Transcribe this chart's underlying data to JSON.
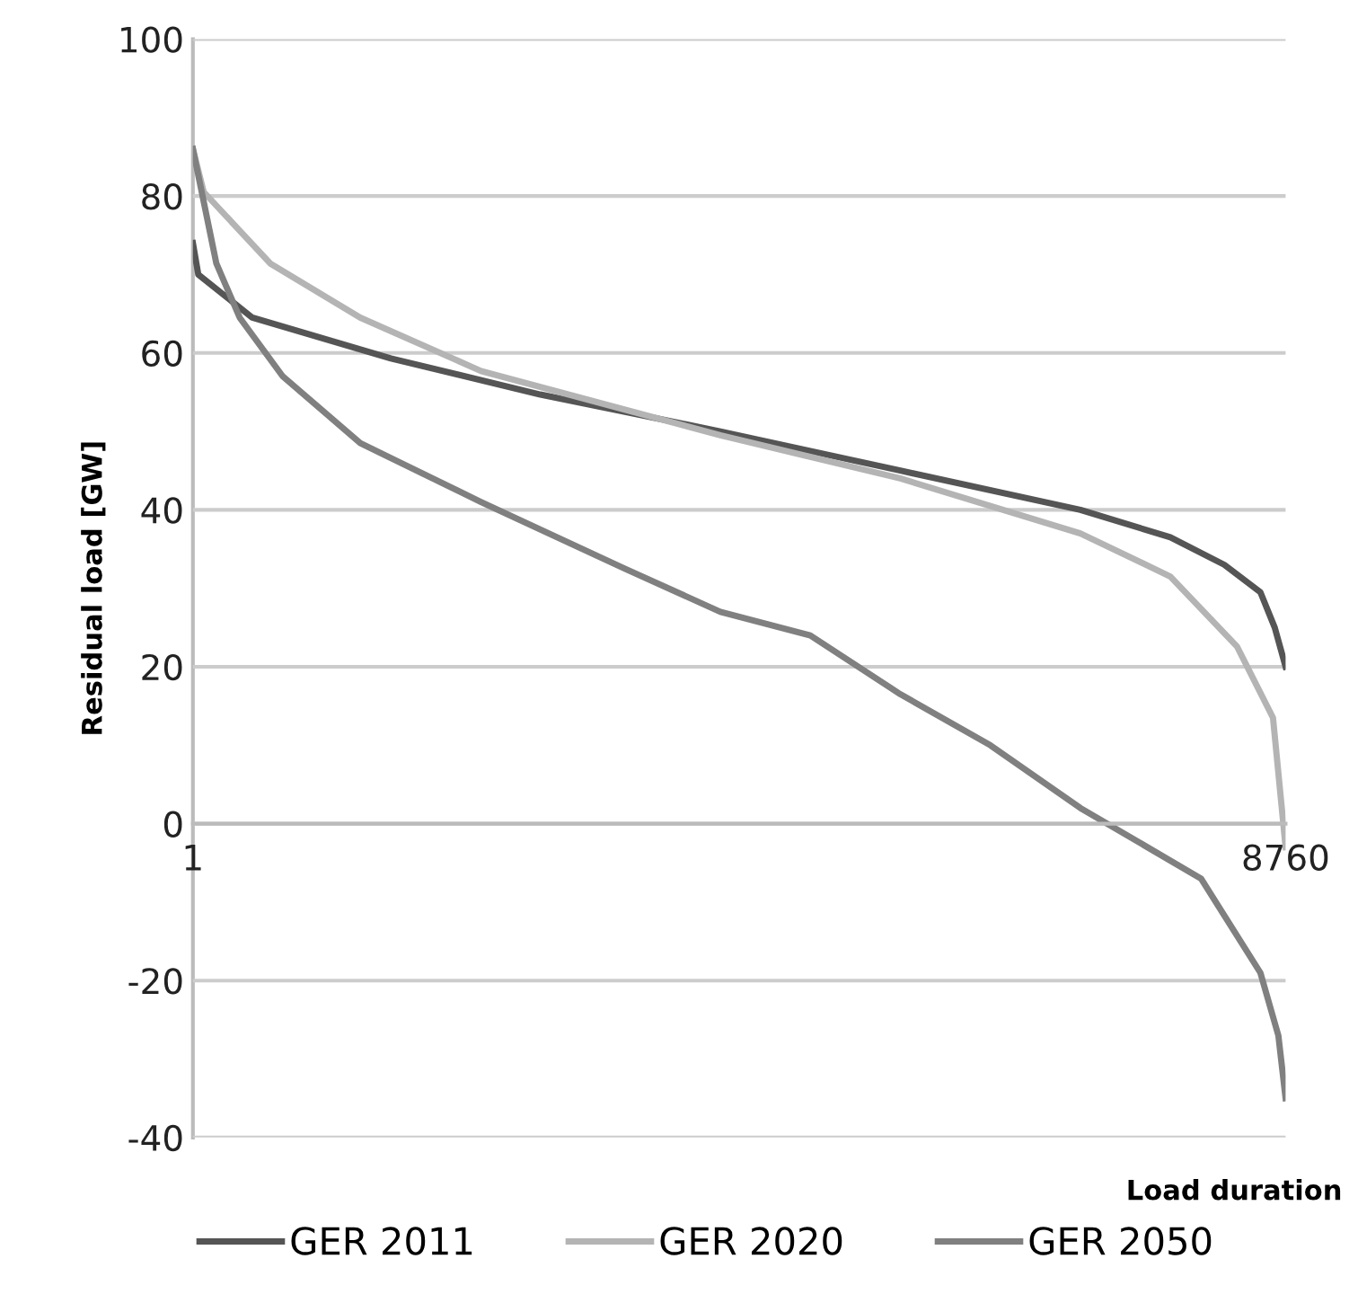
{
  "chart_data": {
    "type": "line",
    "xlabel": "Load duration",
    "ylabel": "Residual load [GW]",
    "xlim": [
      1,
      8760
    ],
    "xticks": [
      1,
      8760
    ],
    "ylim": [
      -40,
      100
    ],
    "yticks": [
      -40,
      -20,
      0,
      20,
      40,
      60,
      80,
      100
    ],
    "grid": "y",
    "legend": "bottom",
    "marker": "none",
    "line_style": "solid",
    "series": [
      {
        "name": "GER 2011",
        "color": "#555555",
        "x": [
          1,
          44,
          477,
          1588,
          2786,
          4229,
          5672,
          7115,
          7836,
          8269,
          8558,
          8673,
          8760
        ],
        "values": [
          74,
          70,
          64.5,
          59.3,
          54.7,
          50,
          45,
          40,
          36.5,
          33,
          29.5,
          25,
          20
        ]
      },
      {
        "name": "GER 2020",
        "color": "#b4b4b4",
        "x": [
          1,
          88,
          621,
          1343,
          2310,
          4229,
          5672,
          7115,
          7836,
          8370,
          8659,
          8760
        ],
        "values": [
          86,
          80.5,
          71.4,
          64.5,
          57.7,
          49.5,
          44,
          37,
          31.5,
          22.6,
          13.5,
          -3
        ]
      },
      {
        "name": "GER 2050",
        "color": "#808080",
        "x": [
          1,
          189,
          376,
          722,
          1343,
          2310,
          3464,
          4229,
          4950,
          5672,
          6393,
          7115,
          8082,
          8558,
          8702,
          8760
        ],
        "values": [
          86,
          71.4,
          64.5,
          57,
          48.5,
          41,
          32.5,
          27,
          24,
          16.5,
          10,
          2,
          -7,
          -19,
          -27,
          -35
        ]
      }
    ]
  }
}
